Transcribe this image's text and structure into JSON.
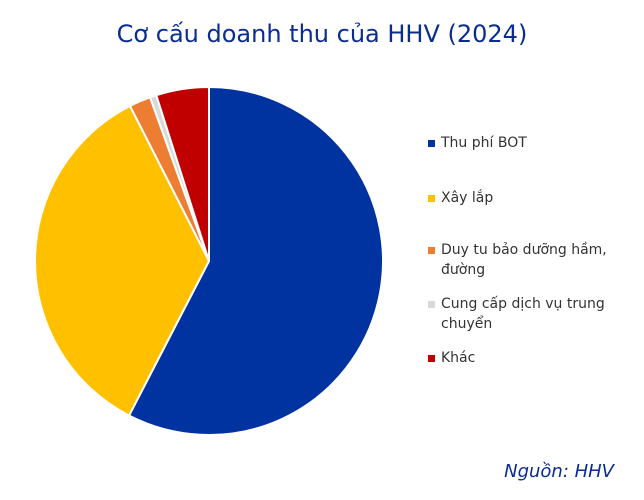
{
  "chart_data": {
    "type": "pie",
    "title": "Cơ cấu doanh thu của HHV (2024)",
    "categories": [
      "Thu phí BOT",
      "Xây lắp",
      "Duy tu bảo dưỡng hầm, đường",
      "Cung cấp dịch vụ trung chuyển",
      "Khác"
    ],
    "values": [
      57.6,
      34.9,
      2.0,
      0.6,
      4.9
    ],
    "colors": [
      "#0033a0",
      "#ffc000",
      "#ed7d31",
      "#d9d9d9",
      "#c00000"
    ],
    "source": "Nguồn: HHV"
  }
}
